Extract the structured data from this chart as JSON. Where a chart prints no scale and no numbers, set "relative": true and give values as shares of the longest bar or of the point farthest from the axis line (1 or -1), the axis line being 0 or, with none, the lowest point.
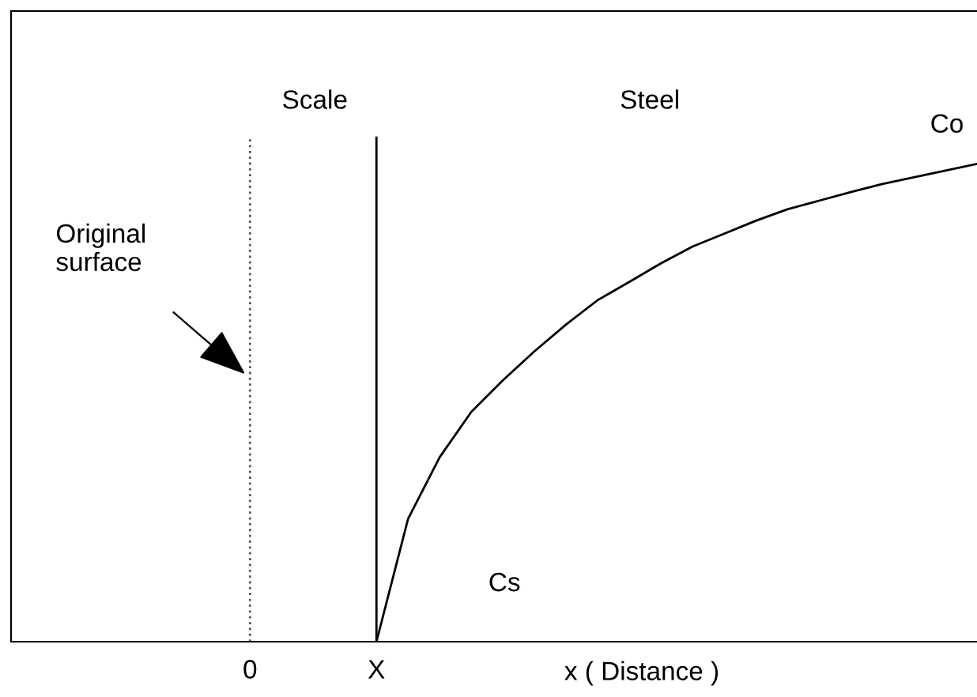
{
  "chart_data": {
    "type": "line",
    "relative": true,
    "xlabel": "x ( Distance )",
    "categories": [
      null,
      null,
      null,
      null,
      null,
      null,
      null,
      "0",
      null,
      null,
      null,
      "X",
      null,
      null,
      null,
      null,
      null,
      null,
      null,
      null,
      null,
      null,
      null,
      null,
      null,
      null,
      null,
      null,
      null,
      null,
      null
    ],
    "series": [
      {
        "color": "#000000",
        "values": [
          null,
          null,
          null,
          null,
          null,
          null,
          null,
          null,
          null,
          null,
          null,
          0,
          0.257,
          0.386,
          0.481,
          0.547,
          0.608,
          0.664,
          0.715,
          0.753,
          0.792,
          0.827,
          0.854,
          0.881,
          0.905,
          0.923,
          0.941,
          0.958,
          0.972,
          0.986,
          1
        ]
      }
    ],
    "ref_lines": [
      {
        "axis": "x",
        "value": "0",
        "label": null,
        "line_style": "dotted",
        "color": "#555555"
      },
      {
        "axis": "x",
        "value": "X",
        "label": null,
        "line_style": "solid",
        "color": "#000000"
      }
    ],
    "annotations": [
      "Scale",
      "Steel",
      "Co",
      "Cs",
      "Original\nsurface"
    ],
    "grid": false,
    "legend": false,
    "marker": "none",
    "line_style": "solid"
  }
}
